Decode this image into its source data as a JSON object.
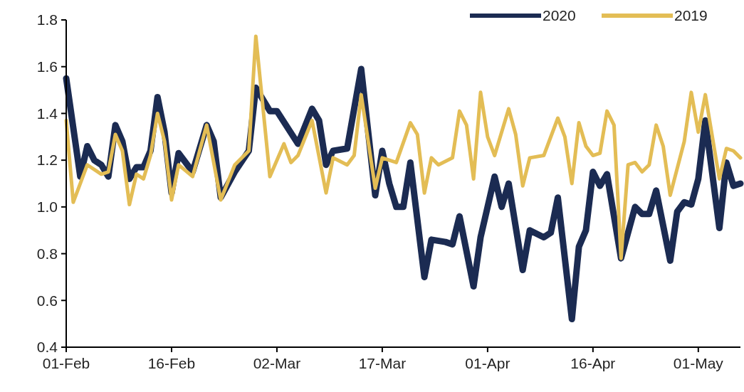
{
  "chart_data": {
    "type": "line",
    "legend": "top right",
    "grid": false,
    "line_style": "solid",
    "marker": "none",
    "xlim": [
      "2020-02-01",
      "2020-05-07"
    ],
    "xticks": [
      {
        "value": "2020-02-01",
        "label": "01-Feb"
      },
      {
        "value": "2020-02-16",
        "label": "16-Feb"
      },
      {
        "value": "2020-03-02",
        "label": "02-Mar"
      },
      {
        "value": "2020-03-17",
        "label": "17-Mar"
      },
      {
        "value": "2020-04-01",
        "label": "01-Apr"
      },
      {
        "value": "2020-04-16",
        "label": "16-Apr"
      },
      {
        "value": "2020-05-01",
        "label": "01-May"
      }
    ],
    "ylim": [
      0.4,
      1.8
    ],
    "yticks": [
      {
        "value": 0.4,
        "label": "0.4"
      },
      {
        "value": 0.6,
        "label": "0.6"
      },
      {
        "value": 0.8,
        "label": "0.8"
      },
      {
        "value": 1.0,
        "label": "1.0"
      },
      {
        "value": 1.2,
        "label": "1.2"
      },
      {
        "value": 1.4,
        "label": "1.4"
      },
      {
        "value": 1.6,
        "label": "1.6"
      },
      {
        "value": 1.8,
        "label": "1.8"
      }
    ],
    "series": [
      {
        "name": "2020",
        "color": "#1b2b52",
        "x": [
          "2020-02-01",
          "2020-02-03",
          "2020-02-04",
          "2020-02-05",
          "2020-02-06",
          "2020-02-07",
          "2020-02-08",
          "2020-02-09",
          "2020-02-10",
          "2020-02-11",
          "2020-02-12",
          "2020-02-13",
          "2020-02-14",
          "2020-02-15",
          "2020-02-16",
          "2020-02-17",
          "2020-02-19",
          "2020-02-21",
          "2020-02-22",
          "2020-02-23",
          "2020-02-25",
          "2020-02-27",
          "2020-02-28",
          "2020-03-01",
          "2020-03-02",
          "2020-03-05",
          "2020-03-07",
          "2020-03-08",
          "2020-03-09",
          "2020-03-10",
          "2020-03-12",
          "2020-03-14",
          "2020-03-16",
          "2020-03-17",
          "2020-03-18",
          "2020-03-19",
          "2020-03-20",
          "2020-03-21",
          "2020-03-23",
          "2020-03-24",
          "2020-03-26",
          "2020-03-27",
          "2020-03-28",
          "2020-03-30",
          "2020-03-31",
          "2020-04-02",
          "2020-04-03",
          "2020-04-04",
          "2020-04-06",
          "2020-04-07",
          "2020-04-09",
          "2020-04-10",
          "2020-04-11",
          "2020-04-13",
          "2020-04-14",
          "2020-04-15",
          "2020-04-16",
          "2020-04-17",
          "2020-04-18",
          "2020-04-20",
          "2020-04-22",
          "2020-04-23",
          "2020-04-24",
          "2020-04-25",
          "2020-04-27",
          "2020-04-28",
          "2020-04-29",
          "2020-04-30",
          "2020-05-01",
          "2020-05-02",
          "2020-05-04",
          "2020-05-05",
          "2020-05-06",
          "2020-05-07"
        ],
        "values": [
          1.55,
          1.13,
          1.26,
          1.2,
          1.18,
          1.13,
          1.35,
          1.28,
          1.12,
          1.17,
          1.17,
          1.24,
          1.47,
          1.32,
          1.06,
          1.23,
          1.15,
          1.35,
          1.28,
          1.04,
          1.15,
          1.24,
          1.51,
          1.41,
          1.41,
          1.27,
          1.42,
          1.37,
          1.18,
          1.24,
          1.25,
          1.59,
          1.05,
          1.24,
          1.1,
          1.0,
          1.0,
          1.19,
          0.7,
          0.86,
          0.85,
          0.84,
          0.96,
          0.66,
          0.87,
          1.13,
          1.0,
          1.1,
          0.73,
          0.9,
          0.87,
          0.89,
          1.04,
          0.52,
          0.83,
          0.9,
          1.15,
          1.09,
          1.14,
          0.78,
          1.0,
          0.97,
          0.97,
          1.07,
          0.77,
          0.98,
          1.02,
          1.01,
          1.12,
          1.37,
          0.91,
          1.19,
          1.09,
          1.1
        ]
      },
      {
        "name": "2019",
        "color": "#e3bd55",
        "x": [
          "2020-02-01",
          "2020-02-02",
          "2020-02-04",
          "2020-02-06",
          "2020-02-07",
          "2020-02-08",
          "2020-02-09",
          "2020-02-10",
          "2020-02-11",
          "2020-02-12",
          "2020-02-13",
          "2020-02-14",
          "2020-02-15",
          "2020-02-16",
          "2020-02-17",
          "2020-02-19",
          "2020-02-21",
          "2020-02-23",
          "2020-02-25",
          "2020-02-27",
          "2020-02-28",
          "2020-03-01",
          "2020-03-03",
          "2020-03-04",
          "2020-03-05",
          "2020-03-07",
          "2020-03-09",
          "2020-03-10",
          "2020-03-12",
          "2020-03-13",
          "2020-03-14",
          "2020-03-16",
          "2020-03-17",
          "2020-03-19",
          "2020-03-21",
          "2020-03-22",
          "2020-03-23",
          "2020-03-24",
          "2020-03-25",
          "2020-03-27",
          "2020-03-28",
          "2020-03-29",
          "2020-03-30",
          "2020-03-31",
          "2020-04-01",
          "2020-04-02",
          "2020-04-04",
          "2020-04-05",
          "2020-04-06",
          "2020-04-07",
          "2020-04-09",
          "2020-04-11",
          "2020-04-12",
          "2020-04-13",
          "2020-04-14",
          "2020-04-15",
          "2020-04-16",
          "2020-04-17",
          "2020-04-18",
          "2020-04-19",
          "2020-04-20",
          "2020-04-21",
          "2020-04-22",
          "2020-04-23",
          "2020-04-24",
          "2020-04-25",
          "2020-04-26",
          "2020-04-27",
          "2020-04-29",
          "2020-04-30",
          "2020-05-01",
          "2020-05-02",
          "2020-05-04",
          "2020-05-05",
          "2020-05-06",
          "2020-05-07"
        ],
        "values": [
          1.37,
          1.02,
          1.18,
          1.14,
          1.15,
          1.31,
          1.24,
          1.01,
          1.14,
          1.12,
          1.22,
          1.4,
          1.28,
          1.03,
          1.18,
          1.13,
          1.35,
          1.03,
          1.18,
          1.24,
          1.73,
          1.13,
          1.27,
          1.19,
          1.22,
          1.37,
          1.06,
          1.21,
          1.18,
          1.22,
          1.48,
          1.08,
          1.21,
          1.19,
          1.36,
          1.31,
          1.06,
          1.21,
          1.18,
          1.21,
          1.41,
          1.35,
          1.12,
          1.49,
          1.3,
          1.22,
          1.42,
          1.31,
          1.09,
          1.21,
          1.22,
          1.38,
          1.3,
          1.1,
          1.36,
          1.26,
          1.22,
          1.23,
          1.41,
          1.35,
          0.78,
          1.18,
          1.19,
          1.15,
          1.18,
          1.35,
          1.26,
          1.05,
          1.28,
          1.49,
          1.32,
          1.48,
          1.12,
          1.25,
          1.24,
          1.21
        ]
      }
    ]
  }
}
